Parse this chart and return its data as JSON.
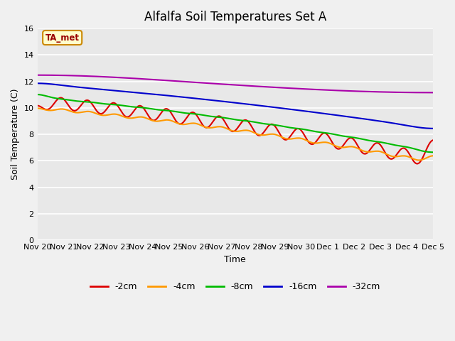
{
  "title": "Alfalfa Soil Temperatures Set A",
  "xlabel": "Time",
  "ylabel": "Soil Temperature (C)",
  "ylim": [
    0,
    16
  ],
  "yticks": [
    0,
    2,
    4,
    6,
    8,
    10,
    12,
    14,
    16
  ],
  "outer_bg": "#f0f0f0",
  "plot_bg": "#e8e8e8",
  "annotation_text": "TA_met",
  "annotation_bg": "#ffffcc",
  "annotation_border": "#cc8800",
  "legend_labels": [
    "-2cm",
    "-4cm",
    "-8cm",
    "-16cm",
    "-32cm"
  ],
  "line_colors": [
    "#dd0000",
    "#ff9900",
    "#00bb00",
    "#0000cc",
    "#aa00aa"
  ],
  "line_width": 1.5,
  "x_tick_labels": [
    "Nov 20",
    "Nov 21",
    "Nov 22",
    "Nov 23",
    "Nov 24",
    "Nov 25",
    "Nov 26",
    "Nov 27",
    "Nov 28",
    "Nov 29",
    "Nov 30",
    "Dec 1",
    "Dec 2",
    "Dec 3",
    "Dec 4",
    "Dec 5"
  ],
  "title_fontsize": 12,
  "axis_fontsize": 9,
  "tick_fontsize": 8
}
